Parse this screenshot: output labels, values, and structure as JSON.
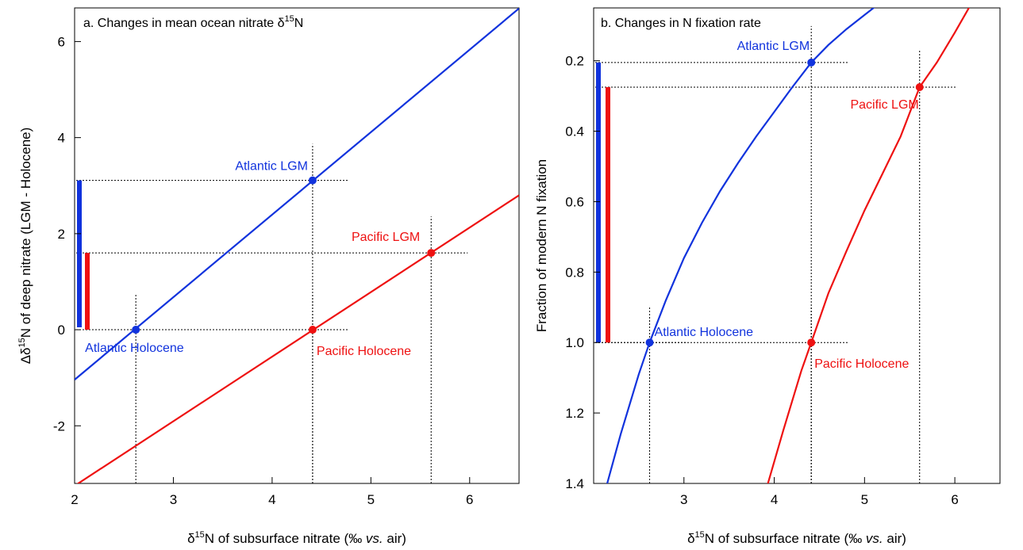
{
  "chart_data": [
    {
      "type": "line",
      "title_prefix": "a. Changes in mean ocean nitrate δ",
      "title_sup": "15",
      "title_suffix": "N",
      "xlabel_prefix": "δ",
      "xlabel_sup": "15",
      "xlabel_suffix": "N of subsurface nitrate (‰ ",
      "xlabel_italic": "vs.",
      "xlabel_end": " air)",
      "ylabel_prefix": "Δδ",
      "ylabel_sup": "15",
      "ylabel_suffix": "N of deep nitrate (LGM - Holocene)",
      "xlim": [
        2,
        6.5
      ],
      "ylim": [
        -3.2,
        6.7
      ],
      "xticks": [
        "2",
        "3",
        "4",
        "5",
        "6"
      ],
      "yticks": [
        "-2",
        "0",
        "2",
        "4",
        "6"
      ],
      "series": [
        {
          "name": "Atlantic",
          "color": "#1133dd",
          "x": [
            2.0,
            6.5
          ],
          "y": [
            -1.04,
            6.69
          ]
        },
        {
          "name": "Pacific",
          "color": "#ee1111",
          "x": [
            2.0,
            6.5
          ],
          "y": [
            -3.25,
            2.8
          ]
        }
      ],
      "points": [
        {
          "label": "Atlantic Holocene",
          "x": 2.62,
          "y": 0.0,
          "color": "#1133dd"
        },
        {
          "label": "Atlantic LGM",
          "x": 4.41,
          "y": 3.11,
          "color": "#1133dd"
        },
        {
          "label": "Pacific Holocene",
          "x": 4.41,
          "y": 0.0,
          "color": "#ee1111"
        },
        {
          "label": "Pacific LGM",
          "x": 5.61,
          "y": 1.6,
          "color": "#ee1111"
        }
      ],
      "bars": [
        {
          "color": "#1133dd",
          "y0": 0.05,
          "y1": 3.11
        },
        {
          "color": "#ee1111",
          "y0": 0.0,
          "y1": 1.6
        }
      ]
    },
    {
      "type": "line",
      "title": "b. Changes in N fixation rate",
      "xlabel_prefix": "δ",
      "xlabel_sup": "15",
      "xlabel_suffix": "N of subsurface nitrate (‰ ",
      "xlabel_italic": "vs.",
      "xlabel_end": " air)",
      "ylabel": "Fraction of modern N fixation",
      "xlim": [
        2,
        6.5
      ],
      "ylim": [
        0.05,
        1.4
      ],
      "y_inverted": true,
      "xticks": [
        "3",
        "4",
        "5",
        "6"
      ],
      "yticks": [
        "0.2",
        "0.4",
        "0.6",
        "0.8",
        "1.0",
        "1.2",
        "1.4"
      ],
      "series": [
        {
          "name": "Atlantic",
          "color": "#1133dd",
          "x": [
            2.15,
            2.3,
            2.5,
            2.62,
            2.8,
            3.0,
            3.2,
            3.4,
            3.6,
            3.8,
            4.0,
            4.2,
            4.41,
            4.6,
            4.8,
            5.0,
            5.2
          ],
          "y": [
            1.4,
            1.26,
            1.09,
            1.0,
            0.88,
            0.76,
            0.66,
            0.57,
            0.49,
            0.415,
            0.345,
            0.275,
            0.205,
            0.155,
            0.11,
            0.07,
            0.03
          ]
        },
        {
          "name": "Pacific",
          "color": "#ee1111",
          "x": [
            3.93,
            4.1,
            4.3,
            4.41,
            4.6,
            4.8,
            5.0,
            5.2,
            5.4,
            5.61,
            5.8,
            6.0,
            6.2
          ],
          "y": [
            1.4,
            1.25,
            1.08,
            1.0,
            0.86,
            0.74,
            0.625,
            0.52,
            0.415,
            0.275,
            0.205,
            0.12,
            0.03
          ]
        }
      ],
      "points": [
        {
          "label": "Atlantic Holocene",
          "x": 2.62,
          "y": 1.0,
          "color": "#1133dd"
        },
        {
          "label": "Atlantic LGM",
          "x": 4.41,
          "y": 0.205,
          "color": "#1133dd"
        },
        {
          "label": "Pacific Holocene",
          "x": 4.41,
          "y": 1.0,
          "color": "#ee1111"
        },
        {
          "label": "Pacific LGM",
          "x": 5.61,
          "y": 0.275,
          "color": "#ee1111"
        }
      ],
      "bars": [
        {
          "color": "#1133dd",
          "y0": 0.205,
          "y1": 1.0
        },
        {
          "color": "#ee1111",
          "y0": 0.275,
          "y1": 1.0
        }
      ]
    }
  ]
}
